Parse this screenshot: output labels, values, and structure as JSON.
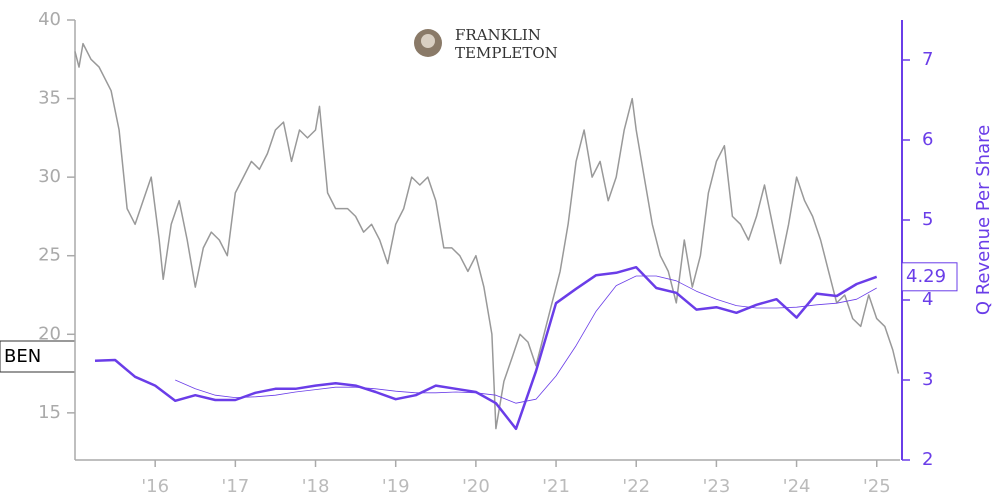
{
  "chart_data": {
    "type": "line",
    "ticker": "BEN",
    "logo": {
      "line1": "FRANKLIN",
      "line2": "TEMPLETON"
    },
    "y2label": "Q Revenue Per Share",
    "xlim": [
      2015.0,
      2025.29
    ],
    "xticks": [
      {
        "value": 2016,
        "label": "'16"
      },
      {
        "value": 2017,
        "label": "'17"
      },
      {
        "value": 2018,
        "label": "'18"
      },
      {
        "value": 2019,
        "label": "'19"
      },
      {
        "value": 2020,
        "label": "'20"
      },
      {
        "value": 2021,
        "label": "'21"
      },
      {
        "value": 2022,
        "label": "'22"
      },
      {
        "value": 2023,
        "label": "'23"
      },
      {
        "value": 2024,
        "label": "'24"
      },
      {
        "value": 2025,
        "label": "'25"
      }
    ],
    "ylim": [
      12,
      40
    ],
    "yticks": [
      15,
      20,
      25,
      30,
      35,
      40
    ],
    "y2lim": [
      2,
      7.5
    ],
    "y2ticks": [
      2,
      3,
      4,
      5,
      6,
      7
    ],
    "series": [
      {
        "color": "#6a3de8",
        "axis": "y2",
        "width": 2.5,
        "x": [
          2015.25,
          2015.5,
          2015.75,
          2016.0,
          2016.25,
          2016.5,
          2016.75,
          2017.0,
          2017.25,
          2017.5,
          2017.75,
          2018.0,
          2018.25,
          2018.5,
          2018.75,
          2019.0,
          2019.25,
          2019.5,
          2019.75,
          2020.0,
          2020.25,
          2020.5,
          2020.75,
          2021.0,
          2021.25,
          2021.5,
          2021.75,
          2022.0,
          2022.25,
          2022.5,
          2022.75,
          2023.0,
          2023.25,
          2023.5,
          2023.75,
          2024.0,
          2024.25,
          2024.5,
          2024.75,
          2025.0
        ],
        "values": [
          3.24,
          3.25,
          3.04,
          2.93,
          2.74,
          2.81,
          2.75,
          2.75,
          2.84,
          2.89,
          2.89,
          2.93,
          2.96,
          2.93,
          2.85,
          2.76,
          2.81,
          2.93,
          2.89,
          2.85,
          2.71,
          2.39,
          3.11,
          3.96,
          4.14,
          4.31,
          4.34,
          4.41,
          4.15,
          4.09,
          3.88,
          3.91,
          3.84,
          3.94,
          4.01,
          3.78,
          4.08,
          4.05,
          4.2,
          4.29
        ]
      },
      {
        "color": "#6a3de8",
        "axis": "y2",
        "width": 0.8,
        "x": [
          2015.25,
          2015.5,
          2015.75,
          2016.0,
          2016.25,
          2016.5,
          2016.75,
          2017.0,
          2017.25,
          2017.5,
          2017.75,
          2018.0,
          2018.25,
          2018.5,
          2018.75,
          2019.0,
          2019.25,
          2019.5,
          2019.75,
          2020.0,
          2020.25,
          2020.5,
          2020.75,
          2021.0,
          2021.25,
          2021.5,
          2021.75,
          2022.0,
          2022.25,
          2022.5,
          2022.75,
          2023.0,
          2023.25,
          2023.5,
          2023.75,
          2024.0,
          2024.25,
          2024.5,
          2024.75,
          2025.0
        ],
        "values": [
          null,
          null,
          null,
          null,
          3.0,
          2.89,
          2.81,
          2.78,
          2.79,
          2.81,
          2.85,
          2.88,
          2.91,
          2.91,
          2.89,
          2.86,
          2.84,
          2.84,
          2.85,
          2.84,
          2.81,
          2.71,
          2.76,
          3.05,
          3.43,
          3.86,
          4.18,
          4.3,
          4.3,
          4.24,
          4.11,
          4.01,
          3.93,
          3.9,
          3.9,
          3.91,
          3.94,
          3.96,
          4.01,
          4.15
        ]
      },
      {
        "color": "#999999",
        "axis": "y",
        "width": 1.5,
        "x": [
          2015.0,
          2015.05,
          2015.1,
          2015.2,
          2015.3,
          2015.45,
          2015.55,
          2015.65,
          2015.75,
          2015.85,
          2015.95,
          2016.05,
          2016.1,
          2016.2,
          2016.3,
          2016.4,
          2016.5,
          2016.6,
          2016.7,
          2016.8,
          2016.9,
          2017.0,
          2017.1,
          2017.2,
          2017.3,
          2017.4,
          2017.5,
          2017.6,
          2017.7,
          2017.8,
          2017.9,
          2018.0,
          2018.05,
          2018.15,
          2018.25,
          2018.4,
          2018.5,
          2018.6,
          2018.7,
          2018.8,
          2018.9,
          2019.0,
          2019.1,
          2019.2,
          2019.3,
          2019.4,
          2019.5,
          2019.6,
          2019.7,
          2019.8,
          2019.9,
          2020.0,
          2020.1,
          2020.2,
          2020.25,
          2020.35,
          2020.45,
          2020.55,
          2020.65,
          2020.75,
          2020.85,
          2020.95,
          2021.05,
          2021.15,
          2021.25,
          2021.35,
          2021.45,
          2021.55,
          2021.65,
          2021.75,
          2021.85,
          2021.95,
          2022.0,
          2022.1,
          2022.2,
          2022.3,
          2022.4,
          2022.5,
          2022.6,
          2022.7,
          2022.8,
          2022.9,
          2023.0,
          2023.1,
          2023.2,
          2023.3,
          2023.4,
          2023.5,
          2023.6,
          2023.7,
          2023.8,
          2023.9,
          2024.0,
          2024.1,
          2024.2,
          2024.3,
          2024.4,
          2024.5,
          2024.6,
          2024.7,
          2024.8,
          2024.9,
          2025.0,
          2025.1,
          2025.2,
          2025.27
        ],
        "values": [
          38,
          37,
          38.5,
          37.5,
          37,
          35.5,
          33,
          28,
          27,
          28.5,
          30,
          26,
          23.5,
          27,
          28.5,
          26,
          23,
          25.5,
          26.5,
          26,
          25,
          29,
          30,
          31,
          30.5,
          31.5,
          33,
          33.5,
          31,
          33,
          32.5,
          33,
          34.5,
          29,
          28,
          28,
          27.5,
          26.5,
          27,
          26,
          24.5,
          27,
          28,
          30,
          29.5,
          30,
          28.5,
          25.5,
          25.5,
          25,
          24,
          25,
          23,
          20,
          14,
          17,
          18.5,
          20,
          19.5,
          18,
          20,
          22,
          24,
          27,
          31,
          33,
          30,
          31,
          28.5,
          30,
          33,
          35,
          33,
          30,
          27,
          25,
          24,
          22,
          26,
          23,
          25,
          29,
          31,
          32,
          27.5,
          27,
          26,
          27.5,
          29.5,
          27,
          24.5,
          27,
          30,
          28.5,
          27.5,
          26,
          24,
          22,
          22.5,
          21,
          20.5,
          22.5,
          21,
          20.5,
          19,
          17.5
        ]
      }
    ],
    "axis_color": "#aaaaaa",
    "y2_color": "#6a3de8"
  }
}
